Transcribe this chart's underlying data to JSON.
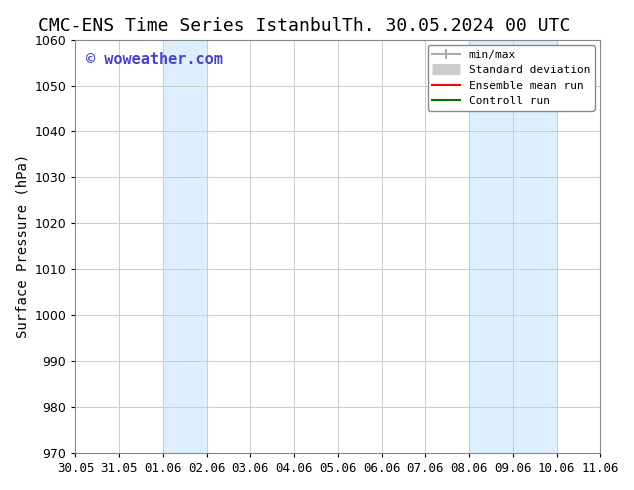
{
  "title_left": "CMC-ENS Time Series Istanbul",
  "title_right": "Th. 30.05.2024 00 UTC",
  "ylabel": "Surface Pressure (hPa)",
  "ylim": [
    970,
    1060
  ],
  "yticks": [
    970,
    980,
    990,
    1000,
    1010,
    1020,
    1030,
    1040,
    1050,
    1060
  ],
  "xlim_start": "30.05",
  "xlim_end": "11.06",
  "xtick_labels": [
    "30.05",
    "31.05",
    "01.06",
    "02.06",
    "03.06",
    "04.06",
    "05.06",
    "06.06",
    "07.06",
    "08.06",
    "09.06",
    "10.06",
    "11.06"
  ],
  "xtick_positions": [
    0,
    1,
    2,
    3,
    4,
    5,
    6,
    7,
    8,
    9,
    10,
    11,
    12
  ],
  "shaded_bands": [
    {
      "x_start": 2,
      "x_end": 3,
      "color": "#ddeeff"
    },
    {
      "x_start": 9,
      "x_end": 11,
      "color": "#ddeeff"
    }
  ],
  "watermark_text": "© woweather.com",
  "watermark_color": "#4444cc",
  "watermark_fontsize": 11,
  "legend_items": [
    {
      "label": "min/max",
      "color": "#aaaaaa",
      "lw": 1.5,
      "style": "errorbar"
    },
    {
      "label": "Standard deviation",
      "color": "#cccccc",
      "lw": 6,
      "style": "thick"
    },
    {
      "label": "Ensemble mean run",
      "color": "#ff0000",
      "lw": 1.5,
      "style": "solid"
    },
    {
      "label": "Controll run",
      "color": "#007700",
      "lw": 1.5,
      "style": "solid"
    }
  ],
  "background_color": "#ffffff",
  "plot_bg_color": "#ffffff",
  "grid_color": "#cccccc",
  "title_fontsize": 13,
  "tick_label_fontsize": 9,
  "ylabel_fontsize": 10
}
